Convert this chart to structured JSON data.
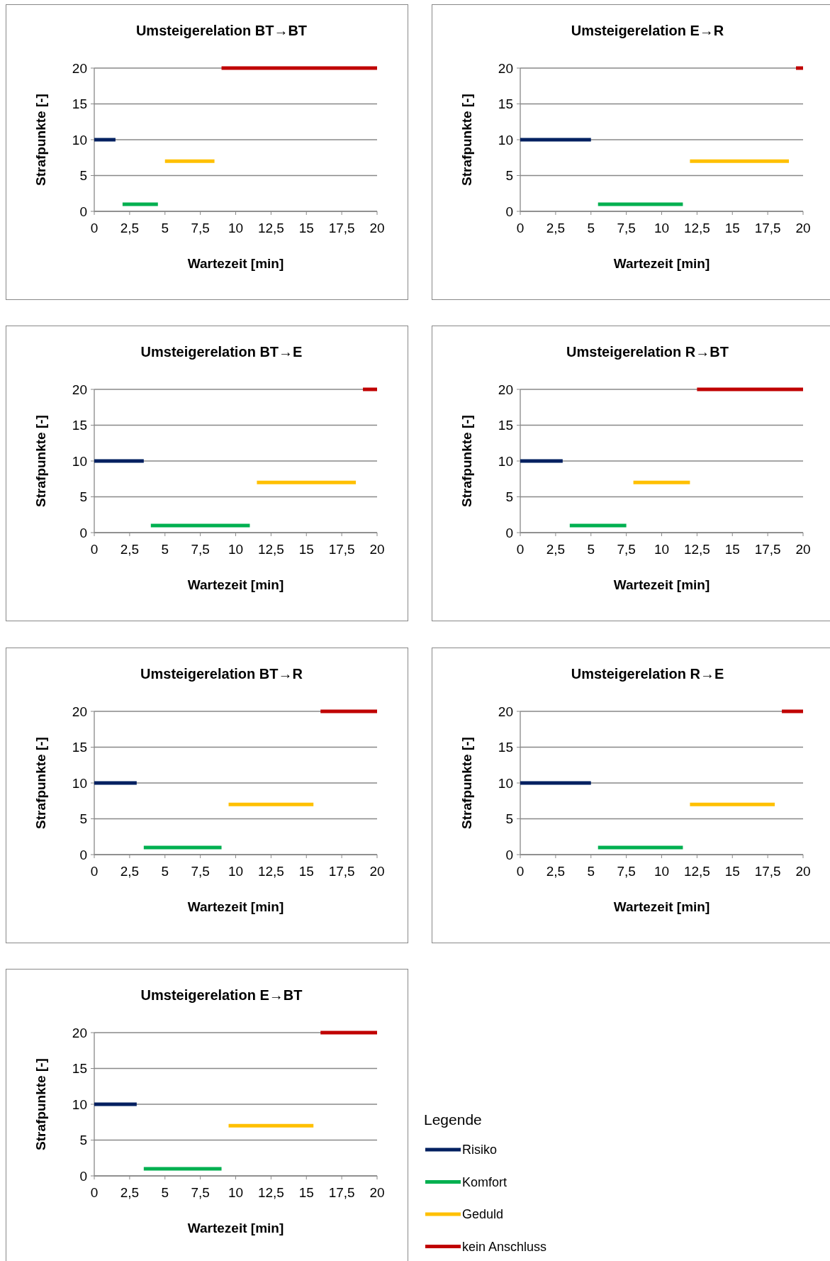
{
  "chart_data": [
    {
      "type": "line",
      "title": "Umsteigerelation BT→BT",
      "xlabel": "Wartezeit [min]",
      "ylabel": "Strafpunkte [-]",
      "xlim": [
        0,
        20
      ],
      "xticks": [
        0,
        {
          "value": 2.5,
          "label": "2,5"
        },
        5,
        {
          "value": 7.5,
          "label": "7,5"
        },
        10,
        {
          "value": 12.5,
          "label": "12,5"
        },
        15,
        {
          "value": 17.5,
          "label": "17,5"
        },
        20
      ],
      "ylim": [
        0,
        20
      ],
      "yticks": [
        0,
        5,
        10,
        15,
        20
      ],
      "grid": "y",
      "legend": false,
      "series": [
        {
          "color": "#002060",
          "x": [
            0,
            1.5
          ],
          "values": [
            10,
            10
          ]
        },
        {
          "color": "#00b050",
          "x": [
            2,
            4.5
          ],
          "values": [
            1,
            1
          ]
        },
        {
          "color": "#ffc000",
          "x": [
            5,
            8.5
          ],
          "values": [
            7,
            7
          ]
        },
        {
          "color": "#c00000",
          "x": [
            9,
            20
          ],
          "values": [
            20,
            20
          ]
        }
      ]
    },
    {
      "type": "line",
      "title": "Umsteigerelation E→R",
      "xlabel": "Wartezeit [min]",
      "ylabel": "Strafpunkte [-]",
      "xlim": [
        0,
        20
      ],
      "xticks": [
        0,
        {
          "value": 2.5,
          "label": "2,5"
        },
        5,
        {
          "value": 7.5,
          "label": "7,5"
        },
        10,
        {
          "value": 12.5,
          "label": "12,5"
        },
        15,
        {
          "value": 17.5,
          "label": "17,5"
        },
        20
      ],
      "ylim": [
        0,
        20
      ],
      "yticks": [
        0,
        5,
        10,
        15,
        20
      ],
      "grid": "y",
      "legend": false,
      "series": [
        {
          "color": "#002060",
          "x": [
            0,
            5
          ],
          "values": [
            10,
            10
          ]
        },
        {
          "color": "#00b050",
          "x": [
            5.5,
            11.5
          ],
          "values": [
            1,
            1
          ]
        },
        {
          "color": "#ffc000",
          "x": [
            12,
            19
          ],
          "values": [
            7,
            7
          ]
        },
        {
          "color": "#c00000",
          "x": [
            19.5,
            20
          ],
          "values": [
            20,
            20
          ]
        }
      ]
    },
    {
      "type": "line",
      "title": "Umsteigerelation BT→E",
      "xlabel": "Wartezeit [min]",
      "ylabel": "Strafpunkte [-]",
      "xlim": [
        0,
        20
      ],
      "xticks": [
        0,
        {
          "value": 2.5,
          "label": "2,5"
        },
        5,
        {
          "value": 7.5,
          "label": "7,5"
        },
        10,
        {
          "value": 12.5,
          "label": "12,5"
        },
        15,
        {
          "value": 17.5,
          "label": "17,5"
        },
        20
      ],
      "ylim": [
        0,
        20
      ],
      "yticks": [
        0,
        5,
        10,
        15,
        20
      ],
      "grid": "y",
      "legend": false,
      "series": [
        {
          "color": "#002060",
          "x": [
            0,
            3.5
          ],
          "values": [
            10,
            10
          ]
        },
        {
          "color": "#00b050",
          "x": [
            4,
            11
          ],
          "values": [
            1,
            1
          ]
        },
        {
          "color": "#ffc000",
          "x": [
            11.5,
            18.5
          ],
          "values": [
            7,
            7
          ]
        },
        {
          "color": "#c00000",
          "x": [
            19,
            20
          ],
          "values": [
            20,
            20
          ]
        }
      ]
    },
    {
      "type": "line",
      "title": "Umsteigerelation R→BT",
      "xlabel": "Wartezeit [min]",
      "ylabel": "Strafpunkte [-]",
      "xlim": [
        0,
        20
      ],
      "xticks": [
        0,
        {
          "value": 2.5,
          "label": "2,5"
        },
        5,
        {
          "value": 7.5,
          "label": "7,5"
        },
        10,
        {
          "value": 12.5,
          "label": "12,5"
        },
        15,
        {
          "value": 17.5,
          "label": "17,5"
        },
        20
      ],
      "ylim": [
        0,
        20
      ],
      "yticks": [
        0,
        5,
        10,
        15,
        20
      ],
      "grid": "y",
      "legend": false,
      "series": [
        {
          "color": "#002060",
          "x": [
            0,
            3
          ],
          "values": [
            10,
            10
          ]
        },
        {
          "color": "#00b050",
          "x": [
            3.5,
            7.5
          ],
          "values": [
            1,
            1
          ]
        },
        {
          "color": "#ffc000",
          "x": [
            8,
            12
          ],
          "values": [
            7,
            7
          ]
        },
        {
          "color": "#c00000",
          "x": [
            12.5,
            20
          ],
          "values": [
            20,
            20
          ]
        }
      ]
    },
    {
      "type": "line",
      "title": "Umsteigerelation BT→R",
      "xlabel": "Wartezeit [min]",
      "ylabel": "Strafpunkte [-]",
      "xlim": [
        0,
        20
      ],
      "xticks": [
        0,
        {
          "value": 2.5,
          "label": "2,5"
        },
        5,
        {
          "value": 7.5,
          "label": "7,5"
        },
        10,
        {
          "value": 12.5,
          "label": "12,5"
        },
        15,
        {
          "value": 17.5,
          "label": "17,5"
        },
        20
      ],
      "ylim": [
        0,
        20
      ],
      "yticks": [
        0,
        5,
        10,
        15,
        20
      ],
      "grid": "y",
      "legend": false,
      "series": [
        {
          "color": "#002060",
          "x": [
            0,
            3
          ],
          "values": [
            10,
            10
          ]
        },
        {
          "color": "#00b050",
          "x": [
            3.5,
            9
          ],
          "values": [
            1,
            1
          ]
        },
        {
          "color": "#ffc000",
          "x": [
            9.5,
            15.5
          ],
          "values": [
            7,
            7
          ]
        },
        {
          "color": "#c00000",
          "x": [
            16,
            20
          ],
          "values": [
            20,
            20
          ]
        }
      ]
    },
    {
      "type": "line",
      "title": "Umsteigerelation R→E",
      "xlabel": "Wartezeit [min]",
      "ylabel": "Strafpunkte [-]",
      "xlim": [
        0,
        20
      ],
      "xticks": [
        0,
        {
          "value": 2.5,
          "label": "2,5"
        },
        5,
        {
          "value": 7.5,
          "label": "7,5"
        },
        10,
        {
          "value": 12.5,
          "label": "12,5"
        },
        15,
        {
          "value": 17.5,
          "label": "17,5"
        },
        20
      ],
      "ylim": [
        0,
        20
      ],
      "yticks": [
        0,
        5,
        10,
        15,
        20
      ],
      "grid": "y",
      "legend": false,
      "series": [
        {
          "color": "#002060",
          "x": [
            0,
            5
          ],
          "values": [
            10,
            10
          ]
        },
        {
          "color": "#00b050",
          "x": [
            5.5,
            11.5
          ],
          "values": [
            1,
            1
          ]
        },
        {
          "color": "#ffc000",
          "x": [
            12,
            18
          ],
          "values": [
            7,
            7
          ]
        },
        {
          "color": "#c00000",
          "x": [
            18.5,
            20
          ],
          "values": [
            20,
            20
          ]
        }
      ]
    },
    {
      "type": "line",
      "title": "Umsteigerelation E→BT",
      "xlabel": "Wartezeit [min]",
      "ylabel": "Strafpunkte [-]",
      "xlim": [
        0,
        20
      ],
      "xticks": [
        0,
        {
          "value": 2.5,
          "label": "2,5"
        },
        5,
        {
          "value": 7.5,
          "label": "7,5"
        },
        10,
        {
          "value": 12.5,
          "label": "12,5"
        },
        15,
        {
          "value": 17.5,
          "label": "17,5"
        },
        20
      ],
      "ylim": [
        0,
        20
      ],
      "yticks": [
        0,
        5,
        10,
        15,
        20
      ],
      "grid": "y",
      "legend": "right",
      "legend_title": "Legende",
      "series": [
        {
          "name": "Risiko",
          "color": "#002060",
          "x": [
            0,
            3
          ],
          "values": [
            10,
            10
          ]
        },
        {
          "name": "Komfort",
          "color": "#00b050",
          "x": [
            3.5,
            9
          ],
          "values": [
            1,
            1
          ]
        },
        {
          "name": "Geduld",
          "color": "#ffc000",
          "x": [
            9.5,
            15.5
          ],
          "values": [
            7,
            7
          ]
        },
        {
          "name": "kein Anschluss",
          "color": "#c00000",
          "x": [
            16,
            20
          ],
          "values": [
            20,
            20
          ]
        }
      ]
    }
  ]
}
